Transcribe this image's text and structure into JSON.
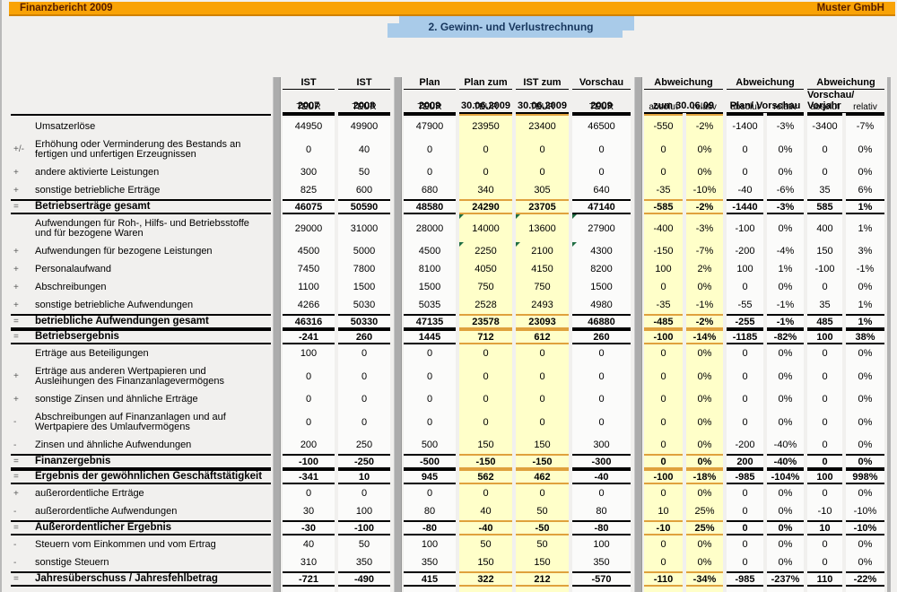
{
  "header": {
    "left_title": "Finanzbericht 2009",
    "right_title": "Muster GmbH",
    "section_title": "2. Gewinn- und Verlustrechnung"
  },
  "colors": {
    "topbar_orange": "#f9a306",
    "topbar_edge": "#cf8100",
    "title_blue": "#a9cbe9",
    "title_text": "#17365d",
    "highlight_yellow": "#ffffc9",
    "highlight_border_orange": "#dfa13d",
    "separator_gray": "#acacac",
    "comment_marker_green": "#1f6e43"
  },
  "table": {
    "columns": [
      {
        "key": "ist-2007",
        "h1": "IST",
        "h2": "2007",
        "h3": "TEUR",
        "highlight": false
      },
      {
        "key": "ist-2008",
        "h1": "IST",
        "h2": "2008",
        "h3": "TEUR",
        "highlight": false
      },
      {
        "key": "plan-2009",
        "h1": "Plan",
        "h2": "2009",
        "h3": "TEUR",
        "highlight": false
      },
      {
        "key": "plan-zum-30-06-2009",
        "h1": "Plan zum",
        "h2": "30.06.2009",
        "h3": "TEUR",
        "highlight": true
      },
      {
        "key": "ist-zum-30-06-2009",
        "h1": "IST zum",
        "h2": "30.06.2009",
        "h3": "TEUR",
        "highlight": true
      },
      {
        "key": "vorschau-2009",
        "h1": "Vorschau",
        "h2": "2009",
        "h3": "TEUR",
        "highlight": false
      }
    ],
    "deviation_groups": [
      {
        "key": "abw-zum-30-06-09",
        "h1": "Abweichung",
        "h2": "zum 30.06.09",
        "sub": [
          "absolut",
          "relativ"
        ],
        "highlight": true
      },
      {
        "key": "abw-plan-vorschau",
        "h1": "Abweichung",
        "h2": "Plan/ Vorschau",
        "sub": [
          "absolut",
          "relativ"
        ],
        "highlight": false
      },
      {
        "key": "abw-vorschau-vorjahr",
        "h1": "Abweichung",
        "h2": "Vorschau/ Vorjahr",
        "sub": [
          "absolut",
          "relativ"
        ],
        "highlight": false
      }
    ],
    "rows": [
      {
        "prefix": "",
        "label": "Umsatzerlöse",
        "bold": false,
        "two_line": false,
        "values": [
          "44950",
          "49900",
          "47900",
          "23950",
          "23400",
          "46500",
          "-550",
          "-2%",
          "-1400",
          "-3%",
          "-3400",
          "-7%"
        ]
      },
      {
        "prefix": "+/-",
        "label": "Erhöhung oder Verminderung des Bestands an fertigen und unfertigen Erzeugnissen",
        "bold": false,
        "two_line": true,
        "values": [
          "0",
          "40",
          "0",
          "0",
          "0",
          "0",
          "0",
          "0%",
          "0",
          "0%",
          "0",
          "0%"
        ]
      },
      {
        "prefix": "+",
        "label": "andere aktivierte Leistungen",
        "bold": false,
        "two_line": false,
        "values": [
          "300",
          "50",
          "0",
          "0",
          "0",
          "0",
          "0",
          "0%",
          "0",
          "0%",
          "0",
          "0%"
        ]
      },
      {
        "prefix": "+",
        "label": "sonstige betriebliche Erträge",
        "bold": false,
        "two_line": false,
        "values": [
          "825",
          "600",
          "680",
          "340",
          "305",
          "640",
          "-35",
          "-10%",
          "-40",
          "-6%",
          "35",
          "6%"
        ]
      },
      {
        "prefix": "=",
        "label": "Betriebserträge gesamt",
        "bold": true,
        "two_line": false,
        "values": [
          "46075",
          "50590",
          "48580",
          "24290",
          "23705",
          "47140",
          "-585",
          "-2%",
          "-1440",
          "-3%",
          "585",
          "1%"
        ]
      },
      {
        "prefix": "",
        "label": "Aufwendungen für Roh-, Hilfs- und Betriebsstoffe und für bezogene Waren",
        "bold": false,
        "two_line": true,
        "values": [
          "29000",
          "31000",
          "28000",
          "14000",
          "13600",
          "27900",
          "-400",
          "-3%",
          "-100",
          "0%",
          "400",
          "1%"
        ],
        "markers": [
          3,
          4,
          5
        ]
      },
      {
        "prefix": "+",
        "label": "Aufwendungen für bezogene Leistungen",
        "bold": false,
        "two_line": false,
        "values": [
          "4500",
          "5000",
          "4500",
          "2250",
          "2100",
          "4300",
          "-150",
          "-7%",
          "-200",
          "-4%",
          "150",
          "3%"
        ],
        "markers": [
          3,
          4,
          5
        ]
      },
      {
        "prefix": "+",
        "label": "Personalaufwand",
        "bold": false,
        "two_line": false,
        "values": [
          "7450",
          "7800",
          "8100",
          "4050",
          "4150",
          "8200",
          "100",
          "2%",
          "100",
          "1%",
          "-100",
          "-1%"
        ]
      },
      {
        "prefix": "+",
        "label": "Abschreibungen",
        "bold": false,
        "two_line": false,
        "values": [
          "1100",
          "1500",
          "1500",
          "750",
          "750",
          "1500",
          "0",
          "0%",
          "0",
          "0%",
          "0",
          "0%"
        ]
      },
      {
        "prefix": "+",
        "label": "sonstige betriebliche Aufwendungen",
        "bold": false,
        "two_line": false,
        "values": [
          "4266",
          "5030",
          "5035",
          "2528",
          "2493",
          "4980",
          "-35",
          "-1%",
          "-55",
          "-1%",
          "35",
          "1%"
        ]
      },
      {
        "prefix": "=",
        "label": "betriebliche Aufwendungen gesamt",
        "bold": true,
        "two_line": false,
        "values": [
          "46316",
          "50330",
          "47135",
          "23578",
          "23093",
          "46880",
          "-485",
          "-2%",
          "-255",
          "-1%",
          "485",
          "1%"
        ]
      },
      {
        "prefix": "=",
        "label": "Betriebsergebnis",
        "bold": true,
        "two_line": false,
        "values": [
          "-241",
          "260",
          "1445",
          "712",
          "612",
          "260",
          "-100",
          "-14%",
          "-1185",
          "-82%",
          "100",
          "38%"
        ]
      },
      {
        "prefix": "",
        "label": "Erträge aus Beteiligungen",
        "bold": false,
        "two_line": false,
        "values": [
          "100",
          "0",
          "0",
          "0",
          "0",
          "0",
          "0",
          "0%",
          "0",
          "0%",
          "0",
          "0%"
        ]
      },
      {
        "prefix": "+",
        "label": "Erträge aus anderen Wertpapieren und Ausleihungen des Finanzanlagevermögens",
        "bold": false,
        "two_line": true,
        "values": [
          "0",
          "0",
          "0",
          "0",
          "0",
          "0",
          "0",
          "0%",
          "0",
          "0%",
          "0",
          "0%"
        ]
      },
      {
        "prefix": "+",
        "label": "sonstige Zinsen und ähnliche Erträge",
        "bold": false,
        "two_line": false,
        "values": [
          "0",
          "0",
          "0",
          "0",
          "0",
          "0",
          "0",
          "0%",
          "0",
          "0%",
          "0",
          "0%"
        ]
      },
      {
        "prefix": "-",
        "label": "Abschreibungen auf Finanzanlagen und auf Wertpapiere des Umlaufvermögens",
        "bold": false,
        "two_line": true,
        "values": [
          "0",
          "0",
          "0",
          "0",
          "0",
          "0",
          "0",
          "0%",
          "0",
          "0%",
          "0",
          "0%"
        ]
      },
      {
        "prefix": "-",
        "label": "Zinsen und ähnliche Aufwendungen",
        "bold": false,
        "two_line": false,
        "values": [
          "200",
          "250",
          "500",
          "150",
          "150",
          "300",
          "0",
          "0%",
          "-200",
          "-40%",
          "0",
          "0%"
        ]
      },
      {
        "prefix": "=",
        "label": "Finanzergebnis",
        "bold": true,
        "two_line": false,
        "values": [
          "-100",
          "-250",
          "-500",
          "-150",
          "-150",
          "-300",
          "0",
          "0%",
          "200",
          "-40%",
          "0",
          "0%"
        ]
      },
      {
        "prefix": "=",
        "label": "Ergebnis der gewöhnlichen Geschäftstätigkeit",
        "bold": true,
        "two_line": false,
        "values": [
          "-341",
          "10",
          "945",
          "562",
          "462",
          "-40",
          "-100",
          "-18%",
          "-985",
          "-104%",
          "100",
          "998%"
        ]
      },
      {
        "prefix": "+",
        "label": "außerordentliche Erträge",
        "bold": false,
        "two_line": false,
        "values": [
          "0",
          "0",
          "0",
          "0",
          "0",
          "0",
          "0",
          "0%",
          "0",
          "0%",
          "0",
          "0%"
        ]
      },
      {
        "prefix": "-",
        "label": "außerordentliche Aufwendungen",
        "bold": false,
        "two_line": false,
        "values": [
          "30",
          "100",
          "80",
          "40",
          "50",
          "80",
          "10",
          "25%",
          "0",
          "0%",
          "-10",
          "-10%"
        ]
      },
      {
        "prefix": "=",
        "label": "Außerordentlicher Ergebnis",
        "bold": true,
        "two_line": false,
        "values": [
          "-30",
          "-100",
          "-80",
          "-40",
          "-50",
          "-80",
          "-10",
          "25%",
          "0",
          "0%",
          "10",
          "-10%"
        ]
      },
      {
        "prefix": "-",
        "label": "Steuern vom Einkommen und vom Ertrag",
        "bold": false,
        "two_line": false,
        "values": [
          "40",
          "50",
          "100",
          "50",
          "50",
          "100",
          "0",
          "0%",
          "0",
          "0%",
          "0",
          "0%"
        ]
      },
      {
        "prefix": "-",
        "label": "sonstige Steuern",
        "bold": false,
        "two_line": false,
        "values": [
          "310",
          "350",
          "350",
          "150",
          "150",
          "350",
          "0",
          "0%",
          "0",
          "0%",
          "0",
          "0%"
        ]
      },
      {
        "prefix": "=",
        "label": "Jahresüberschuss / Jahresfehlbetrag",
        "bold": true,
        "two_line": false,
        "values": [
          "-721",
          "-490",
          "415",
          "322",
          "212",
          "-570",
          "-110",
          "-34%",
          "-985",
          "-237%",
          "110",
          "-22%"
        ]
      }
    ]
  }
}
